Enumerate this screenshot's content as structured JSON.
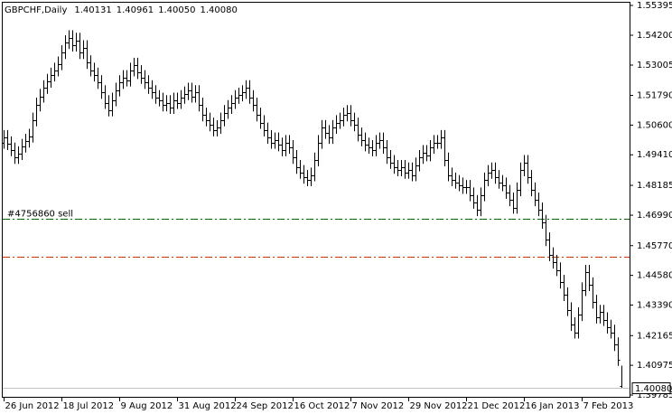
{
  "chart_data": {
    "type": "ohlc",
    "title": "GBPCHF,Daily",
    "header_labels": [
      "1.40131",
      "1.40961",
      "1.40050",
      "1.40080"
    ],
    "categories": [
      "26 Jun 2012",
      null,
      null,
      null,
      null,
      null,
      null,
      null,
      null,
      null,
      null,
      null,
      null,
      null,
      null,
      null,
      "18 Jul 2012",
      null,
      null,
      null,
      null,
      null,
      null,
      null,
      null,
      null,
      null,
      null,
      null,
      null,
      null,
      null,
      "9 Aug 2012",
      null,
      null,
      null,
      null,
      null,
      null,
      null,
      null,
      null,
      null,
      null,
      null,
      null,
      null,
      null,
      "31 Aug 2012",
      null,
      null,
      null,
      null,
      null,
      null,
      null,
      null,
      null,
      null,
      null,
      null,
      null,
      null,
      null,
      "24 Sep 2012",
      null,
      null,
      null,
      null,
      null,
      null,
      null,
      null,
      null,
      null,
      null,
      null,
      null,
      null,
      null,
      "16 Oct 2012",
      null,
      null,
      null,
      null,
      null,
      null,
      null,
      null,
      null,
      null,
      null,
      null,
      null,
      null,
      null,
      "7 Nov 2012",
      null,
      null,
      null,
      null,
      null,
      null,
      null,
      null,
      null,
      null,
      null,
      null,
      null,
      null,
      null,
      "29 Nov 2012",
      null,
      null,
      null,
      null,
      null,
      null,
      null,
      null,
      null,
      null,
      null,
      null,
      null,
      null,
      null,
      "21 Dec 2012",
      null,
      null,
      null,
      null,
      null,
      null,
      null,
      null,
      null,
      null,
      null,
      null,
      null,
      null,
      null,
      "16 Jan 2013",
      null,
      null,
      null,
      null,
      null,
      null,
      null,
      null,
      null,
      null,
      null,
      null,
      null,
      null,
      null,
      "7 Feb 2013",
      null,
      null,
      null,
      null,
      null,
      null,
      null,
      null,
      null,
      null,
      null
    ],
    "open": [
      1.499,
      1.501,
      1.4985,
      1.496,
      1.493,
      1.4945,
      1.4975,
      1.4995,
      1.5015,
      1.508,
      1.514,
      1.5175,
      1.521,
      1.5235,
      1.526,
      1.528,
      1.5305,
      1.535,
      1.539,
      1.541,
      1.538,
      1.54,
      1.535,
      1.537,
      1.531,
      1.528,
      1.526,
      1.523,
      1.519,
      1.515,
      1.512,
      1.516,
      1.52,
      1.523,
      1.525,
      1.524,
      1.528,
      1.53,
      1.527,
      1.525,
      1.523,
      1.521,
      1.519,
      1.517,
      1.516,
      1.514,
      1.515,
      1.513,
      1.516,
      1.515,
      1.517,
      1.5185,
      1.52,
      1.5175,
      1.519,
      1.514,
      1.51,
      1.508,
      1.506,
      1.504,
      1.505,
      1.508,
      1.511,
      1.513,
      1.515,
      1.517,
      1.518,
      1.519,
      1.521,
      1.517,
      1.514,
      1.51,
      1.507,
      1.504,
      1.501,
      1.499,
      1.5,
      1.498,
      1.496,
      1.499,
      1.497,
      1.493,
      1.489,
      1.487,
      1.485,
      1.484,
      1.486,
      1.492,
      1.499,
      1.505,
      1.503,
      1.501,
      1.505,
      1.507,
      1.508,
      1.51,
      1.511,
      1.508,
      1.506,
      1.502,
      1.5,
      1.498,
      1.497,
      1.496,
      1.499,
      1.5,
      1.497,
      1.493,
      1.491,
      1.489,
      1.488,
      1.489,
      1.487,
      1.488,
      1.486,
      1.49,
      1.493,
      1.495,
      1.494,
      1.497,
      1.499,
      1.499,
      1.501,
      1.492,
      1.486,
      1.484,
      1.483,
      1.482,
      1.481,
      1.481,
      1.478,
      1.475,
      1.472,
      1.478,
      1.484,
      1.487,
      1.488,
      1.485,
      1.483,
      1.482,
      1.479,
      1.476,
      1.473,
      1.48,
      1.488,
      1.491,
      1.485,
      1.48,
      1.476,
      1.472,
      1.467,
      1.46,
      1.454,
      1.451,
      1.448,
      1.443,
      1.438,
      1.432,
      1.426,
      1.423,
      1.43,
      1.44,
      1.447,
      1.442,
      1.435,
      1.429,
      1.431,
      1.428,
      1.425,
      1.423,
      1.418,
      1.40131
    ],
    "high": [
      1.504,
      1.504,
      1.5015,
      1.499,
      1.4975,
      1.5005,
      1.5025,
      1.5045,
      1.511,
      1.517,
      1.5205,
      1.524,
      1.5265,
      1.529,
      1.531,
      1.5335,
      1.538,
      1.542,
      1.544,
      1.544,
      1.543,
      1.543,
      1.54,
      1.54,
      1.534,
      1.531,
      1.529,
      1.526,
      1.522,
      1.518,
      1.519,
      1.523,
      1.526,
      1.528,
      1.528,
      1.531,
      1.533,
      1.533,
      1.53,
      1.528,
      1.526,
      1.524,
      1.522,
      1.52,
      1.519,
      1.518,
      1.518,
      1.519,
      1.519,
      1.52,
      1.5215,
      1.523,
      1.523,
      1.522,
      1.522,
      1.517,
      1.513,
      1.511,
      1.509,
      1.508,
      1.511,
      1.514,
      1.516,
      1.518,
      1.52,
      1.521,
      1.522,
      1.524,
      1.524,
      1.52,
      1.517,
      1.513,
      1.51,
      1.507,
      1.504,
      1.503,
      1.503,
      1.501,
      1.502,
      1.502,
      1.5,
      1.496,
      1.492,
      1.49,
      1.488,
      1.489,
      1.495,
      1.502,
      1.508,
      1.508,
      1.506,
      1.508,
      1.51,
      1.511,
      1.513,
      1.514,
      1.514,
      1.511,
      1.509,
      1.505,
      1.503,
      1.501,
      1.5,
      1.502,
      1.503,
      1.503,
      1.5,
      1.496,
      1.494,
      1.492,
      1.492,
      1.492,
      1.491,
      1.491,
      1.493,
      1.496,
      1.498,
      1.498,
      1.5,
      1.502,
      1.502,
      1.504,
      1.504,
      1.495,
      1.489,
      1.487,
      1.486,
      1.485,
      1.484,
      1.484,
      1.481,
      1.478,
      1.481,
      1.487,
      1.49,
      1.491,
      1.491,
      1.488,
      1.486,
      1.485,
      1.482,
      1.479,
      1.483,
      1.491,
      1.494,
      1.494,
      1.488,
      1.483,
      1.479,
      1.475,
      1.47,
      1.463,
      1.457,
      1.454,
      1.451,
      1.446,
      1.441,
      1.435,
      1.429,
      1.433,
      1.443,
      1.45,
      1.45,
      1.445,
      1.438,
      1.434,
      1.434,
      1.431,
      1.428,
      1.426,
      1.421,
      1.40961
    ],
    "low": [
      1.4965,
      1.496,
      1.4935,
      1.4905,
      1.4905,
      1.492,
      1.495,
      1.497,
      1.499,
      1.5055,
      1.5115,
      1.515,
      1.5185,
      1.521,
      1.5235,
      1.5255,
      1.528,
      1.5325,
      1.5365,
      1.5355,
      1.5355,
      1.5325,
      1.5325,
      1.5285,
      1.5255,
      1.5235,
      1.5205,
      1.5165,
      1.5125,
      1.5095,
      1.5095,
      1.5135,
      1.5175,
      1.5205,
      1.5215,
      1.5215,
      1.5255,
      1.5245,
      1.5225,
      1.5205,
      1.5185,
      1.5165,
      1.5145,
      1.5135,
      1.5115,
      1.5115,
      1.5105,
      1.5105,
      1.5125,
      1.5125,
      1.5145,
      1.516,
      1.515,
      1.515,
      1.5115,
      1.5075,
      1.5055,
      1.5035,
      1.5015,
      1.5015,
      1.5025,
      1.5055,
      1.5085,
      1.5105,
      1.5125,
      1.5145,
      1.5155,
      1.5165,
      1.5145,
      1.5115,
      1.5075,
      1.5045,
      1.5015,
      1.4985,
      1.4965,
      1.4965,
      1.4955,
      1.4935,
      1.4935,
      1.4945,
      1.4905,
      1.4865,
      1.4845,
      1.4825,
      1.4815,
      1.4815,
      1.4835,
      1.4895,
      1.4965,
      1.5005,
      1.4985,
      1.4985,
      1.5025,
      1.5045,
      1.5055,
      1.5075,
      1.5055,
      1.5035,
      1.4995,
      1.4975,
      1.4955,
      1.4945,
      1.4935,
      1.4935,
      1.4965,
      1.4945,
      1.4905,
      1.4885,
      1.4865,
      1.4855,
      1.4855,
      1.4845,
      1.4845,
      1.4835,
      1.4835,
      1.4875,
      1.4905,
      1.4915,
      1.4915,
      1.4945,
      1.4965,
      1.4965,
      1.4895,
      1.4835,
      1.4815,
      1.4805,
      1.4795,
      1.4785,
      1.4785,
      1.4755,
      1.4725,
      1.4695,
      1.4695,
      1.4755,
      1.4815,
      1.4845,
      1.4825,
      1.4805,
      1.4795,
      1.4765,
      1.4735,
      1.4705,
      1.4705,
      1.4775,
      1.4855,
      1.4825,
      1.4775,
      1.4735,
      1.4695,
      1.4645,
      1.4575,
      1.4515,
      1.4485,
      1.4455,
      1.4405,
      1.4355,
      1.4295,
      1.4235,
      1.4205,
      1.4205,
      1.4275,
      1.4375,
      1.4395,
      1.4325,
      1.4265,
      1.4265,
      1.4255,
      1.4225,
      1.4205,
      1.4155,
      1.4095,
      1.4005
    ],
    "close": [
      1.501,
      1.4985,
      1.496,
      1.493,
      1.4945,
      1.4975,
      1.4995,
      1.5015,
      1.508,
      1.514,
      1.5175,
      1.521,
      1.5235,
      1.526,
      1.528,
      1.5305,
      1.535,
      1.539,
      1.541,
      1.538,
      1.54,
      1.535,
      1.537,
      1.531,
      1.528,
      1.526,
      1.523,
      1.519,
      1.515,
      1.512,
      1.516,
      1.52,
      1.523,
      1.525,
      1.524,
      1.528,
      1.53,
      1.527,
      1.525,
      1.523,
      1.521,
      1.519,
      1.517,
      1.516,
      1.514,
      1.515,
      1.513,
      1.516,
      1.515,
      1.517,
      1.5185,
      1.52,
      1.5175,
      1.519,
      1.514,
      1.51,
      1.508,
      1.506,
      1.504,
      1.505,
      1.508,
      1.511,
      1.513,
      1.515,
      1.517,
      1.518,
      1.519,
      1.521,
      1.517,
      1.514,
      1.51,
      1.507,
      1.504,
      1.501,
      1.499,
      1.5,
      1.498,
      1.496,
      1.499,
      1.497,
      1.493,
      1.489,
      1.487,
      1.485,
      1.484,
      1.486,
      1.492,
      1.499,
      1.505,
      1.503,
      1.501,
      1.505,
      1.507,
      1.508,
      1.51,
      1.511,
      1.508,
      1.506,
      1.502,
      1.5,
      1.498,
      1.497,
      1.496,
      1.499,
      1.5,
      1.497,
      1.493,
      1.491,
      1.489,
      1.488,
      1.489,
      1.487,
      1.488,
      1.486,
      1.49,
      1.493,
      1.495,
      1.494,
      1.497,
      1.499,
      1.499,
      1.501,
      1.492,
      1.486,
      1.484,
      1.483,
      1.482,
      1.481,
      1.481,
      1.478,
      1.475,
      1.472,
      1.478,
      1.484,
      1.487,
      1.488,
      1.485,
      1.483,
      1.482,
      1.479,
      1.476,
      1.473,
      1.48,
      1.488,
      1.491,
      1.485,
      1.48,
      1.476,
      1.472,
      1.467,
      1.46,
      1.454,
      1.451,
      1.448,
      1.443,
      1.438,
      1.432,
      1.426,
      1.423,
      1.43,
      1.44,
      1.447,
      1.442,
      1.435,
      1.429,
      1.431,
      1.428,
      1.425,
      1.423,
      1.418,
      1.412,
      1.4008
    ],
    "color": "#000000",
    "ylim": [
      1.39785,
      1.55395
    ],
    "yticks": [
      {
        "value": 1.55395,
        "label": "1.55395"
      },
      {
        "value": 1.542,
        "label": "1.54200"
      },
      {
        "value": 1.53005,
        "label": "1.53005"
      },
      {
        "value": 1.5179,
        "label": "1.51790"
      },
      {
        "value": 1.506,
        "label": "1.50600"
      },
      {
        "value": 1.4941,
        "label": "1.49410"
      },
      {
        "value": 1.48185,
        "label": "1.48185"
      },
      {
        "value": 1.4699,
        "label": "1.46990"
      },
      {
        "value": 1.4577,
        "label": "1.45770"
      },
      {
        "value": 1.4458,
        "label": "1.44580"
      },
      {
        "value": 1.4339,
        "label": "1.43390"
      },
      {
        "value": 1.42165,
        "label": "1.42165"
      },
      {
        "value": 1.40975,
        "label": "1.40975"
      },
      {
        "value": 1.39785,
        "label": "1.39785"
      }
    ],
    "levels": [
      {
        "label": "#4756860 sell",
        "value": 1.4685,
        "color": "#006400"
      },
      {
        "value": 1.4531,
        "color": "#cc3300"
      }
    ],
    "grid": false
  }
}
